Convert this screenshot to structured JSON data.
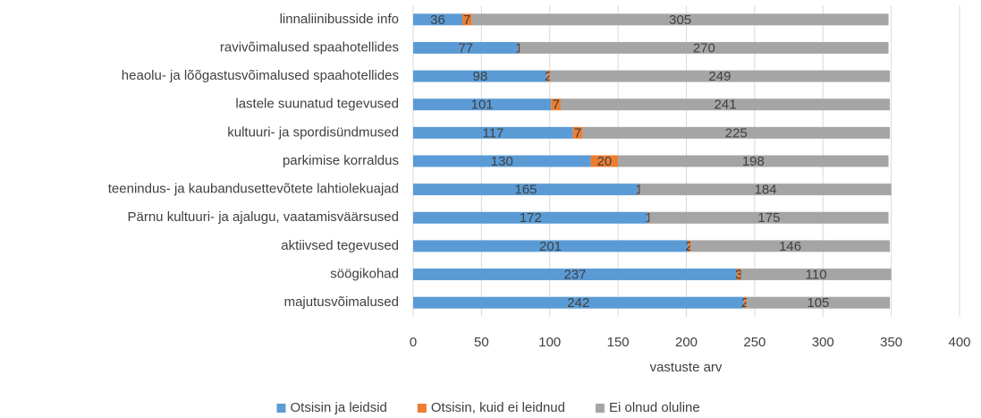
{
  "chart_data": {
    "type": "bar",
    "orientation": "horizontal",
    "stacked": true,
    "categories": [
      "linnaliinibusside info",
      "ravivõimalused spaahotellides",
      "heaolu- ja lõõgastusvõimalused spaahotellides",
      "lastele suunatud tegevused",
      "kultuuri- ja spordisündmused",
      "parkimise korraldus",
      "teenindus- ja kaubandusettevõtete lahtiolekuajad",
      "Pärnu kultuuri- ja ajalugu, vaatamisväärsused",
      "aktiivsed tegevused",
      "söögikohad",
      "majutusvõimalused"
    ],
    "series": [
      {
        "name": "Otsisin ja leidsid",
        "color": "#5b9bd5",
        "values": [
          36,
          77,
          98,
          101,
          117,
          130,
          165,
          172,
          201,
          237,
          242
        ]
      },
      {
        "name": "Otsisin, kuid ei leidnud",
        "color": "#ed7d31",
        "values": [
          7,
          1,
          2,
          7,
          7,
          20,
          1,
          1,
          2,
          3,
          2
        ]
      },
      {
        "name": "Ei olnud oluline",
        "color": "#a5a5a5",
        "values": [
          305,
          270,
          249,
          241,
          225,
          198,
          184,
          175,
          146,
          110,
          105
        ]
      }
    ],
    "xlabel": "vastuste arv",
    "xlim": [
      0,
      400
    ],
    "xticks": [
      0,
      50,
      100,
      150,
      200,
      250,
      300,
      350,
      400
    ],
    "grid": true,
    "legend": "bottom"
  }
}
